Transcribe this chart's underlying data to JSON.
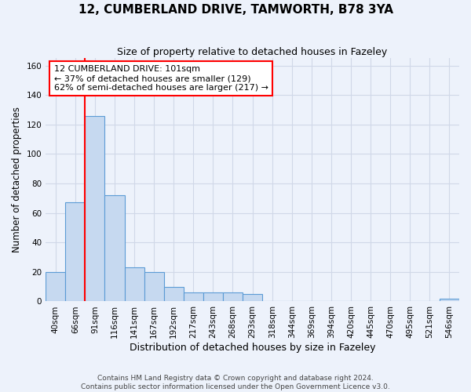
{
  "title1": "12, CUMBERLAND DRIVE, TAMWORTH, B78 3YA",
  "title2": "Size of property relative to detached houses in Fazeley",
  "xlabel": "Distribution of detached houses by size in Fazeley",
  "ylabel": "Number of detached properties",
  "bar_labels": [
    "40sqm",
    "66sqm",
    "91sqm",
    "116sqm",
    "141sqm",
    "167sqm",
    "192sqm",
    "217sqm",
    "243sqm",
    "268sqm",
    "293sqm",
    "318sqm",
    "344sqm",
    "369sqm",
    "394sqm",
    "420sqm",
    "445sqm",
    "470sqm",
    "495sqm",
    "521sqm",
    "546sqm"
  ],
  "bar_values": [
    20,
    67,
    126,
    72,
    23,
    20,
    10,
    6,
    6,
    6,
    5,
    0,
    0,
    0,
    0,
    0,
    0,
    0,
    0,
    0,
    2
  ],
  "bar_color": "#c6d9f0",
  "bar_edge_color": "#5b9bd5",
  "red_line_x": 2.0,
  "annotation_text": "12 CUMBERLAND DRIVE: 101sqm\n← 37% of detached houses are smaller (129)\n62% of semi-detached houses are larger (217) →",
  "annotation_box_color": "white",
  "annotation_box_edge_color": "red",
  "ylim": [
    0,
    165
  ],
  "yticks": [
    0,
    20,
    40,
    60,
    80,
    100,
    120,
    140,
    160
  ],
  "grid_color": "#d0d8e8",
  "bg_color": "#edf2fb",
  "footer1": "Contains HM Land Registry data © Crown copyright and database right 2024.",
  "footer2": "Contains public sector information licensed under the Open Government Licence v3.0."
}
